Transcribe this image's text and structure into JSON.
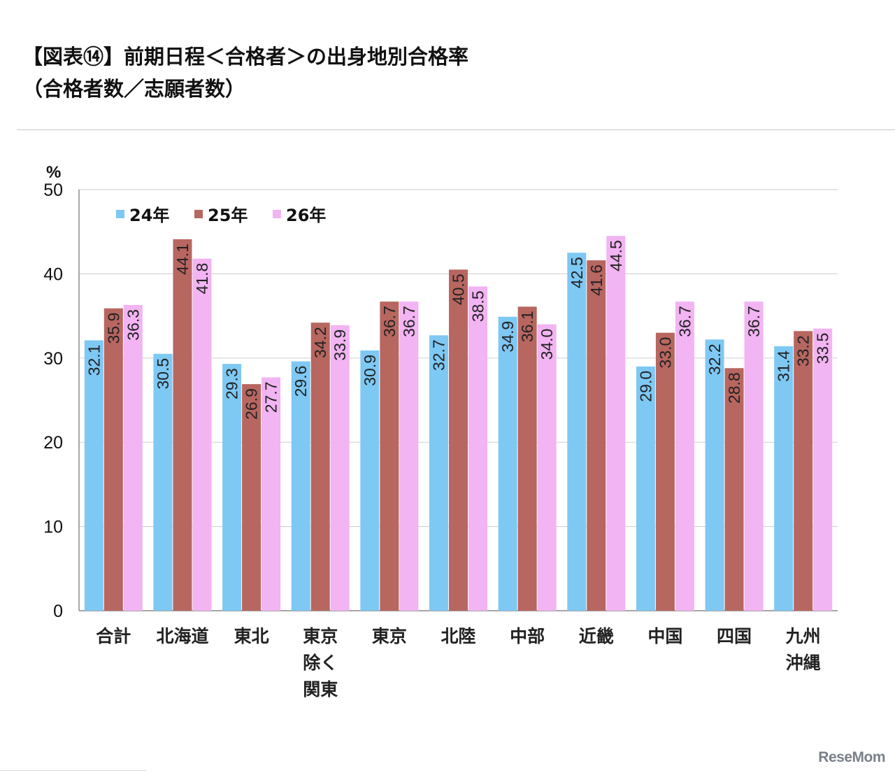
{
  "header": {
    "title_line1": "【図表⑭】前期日程＜合格者＞の出身地別合格率",
    "title_line2": "（合格者数／志願者数）"
  },
  "watermark": "ReseMom",
  "chart_data": {
    "type": "bar",
    "title": "【図表⑭】前期日程＜合格者＞の出身地別合格率（合格者数／志願者数）",
    "ylabel": "%",
    "ylim": [
      0,
      50
    ],
    "yticks": [
      0,
      10,
      20,
      30,
      40,
      50
    ],
    "grid": true,
    "legend_position": "top-left",
    "categories": [
      [
        "合計"
      ],
      [
        "北海道"
      ],
      [
        "東北"
      ],
      [
        "東京",
        "除く",
        "関東"
      ],
      [
        "東京"
      ],
      [
        "北陸"
      ],
      [
        "中部"
      ],
      [
        "近畿"
      ],
      [
        "中国"
      ],
      [
        "四国"
      ],
      [
        "九州",
        "沖縄"
      ]
    ],
    "series": [
      {
        "name": "24年",
        "color": "#7ec8f4",
        "values": [
          32.1,
          30.5,
          29.3,
          29.6,
          30.9,
          32.7,
          34.9,
          42.5,
          29.0,
          32.2,
          31.4
        ],
        "labels": [
          "32.1",
          "30.5",
          "29.3",
          "29.6",
          "30.9",
          "32.7",
          "34.9",
          "42.5",
          "29.0",
          "32.2",
          "31.4"
        ]
      },
      {
        "name": "25年",
        "color": "#b86660",
        "values": [
          35.9,
          44.1,
          26.9,
          34.2,
          36.7,
          40.5,
          36.1,
          41.6,
          33.0,
          28.8,
          33.2
        ],
        "labels": [
          "35.9",
          "44.1",
          "26.9",
          "34.2",
          "36.7",
          "40.5",
          "36.1",
          "41.6",
          "33.0",
          "28.8",
          "33.2"
        ]
      },
      {
        "name": "26年",
        "color": "#f2b4f2",
        "values": [
          36.3,
          41.8,
          27.7,
          33.9,
          36.7,
          38.5,
          34.0,
          44.5,
          36.7,
          36.7,
          33.5
        ],
        "labels": [
          "36.3",
          "41.8",
          "27.7",
          "33.9",
          "36.7",
          "38.5",
          "34.0",
          "44.5",
          "36.7",
          "36.7",
          "33.5"
        ]
      }
    ]
  }
}
